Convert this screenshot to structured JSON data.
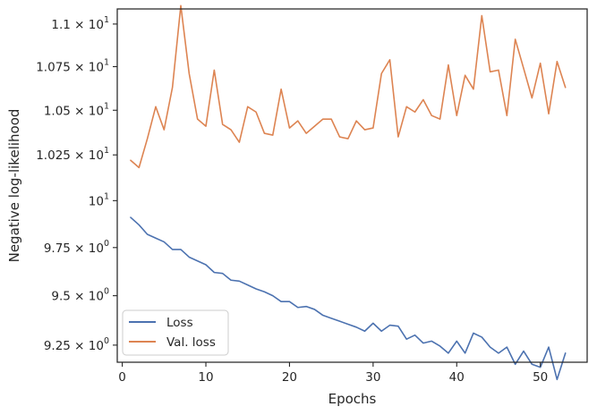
{
  "chart_data": {
    "type": "line",
    "xlabel": "Epochs",
    "ylabel": "Negative log-likelihood",
    "yscale": "log",
    "xlim": [
      -0.6,
      55.6
    ],
    "ylim": [
      9.165,
      11.09
    ],
    "grid": false,
    "legend_position": "lower-left",
    "x_ticks": [
      {
        "value": 0,
        "label": "0"
      },
      {
        "value": 10,
        "label": "10"
      },
      {
        "value": 20,
        "label": "20"
      },
      {
        "value": 30,
        "label": "30"
      },
      {
        "value": 40,
        "label": "40"
      },
      {
        "value": 50,
        "label": "50"
      }
    ],
    "y_ticks": [
      {
        "value": 9.25,
        "base": "9.25",
        "times": "×",
        "power": "10",
        "exp": "0"
      },
      {
        "value": 9.5,
        "base": "9.5",
        "times": "×",
        "power": "10",
        "exp": "0"
      },
      {
        "value": 9.75,
        "base": "9.75",
        "times": "×",
        "power": "10",
        "exp": "0"
      },
      {
        "value": 10.0,
        "base": "",
        "times": "",
        "power": "10",
        "exp": "1"
      },
      {
        "value": 10.25,
        "base": "1.025",
        "times": "×",
        "power": "10",
        "exp": "1"
      },
      {
        "value": 10.5,
        "base": "1.05",
        "times": "×",
        "power": "10",
        "exp": "1"
      },
      {
        "value": 10.75,
        "base": "1.075",
        "times": "×",
        "power": "10",
        "exp": "1"
      },
      {
        "value": 11.0,
        "base": "1.1",
        "times": "×",
        "power": "10",
        "exp": "1"
      }
    ],
    "x": [
      1,
      2,
      3,
      4,
      5,
      6,
      7,
      8,
      9,
      10,
      11,
      12,
      13,
      14,
      15,
      16,
      17,
      18,
      19,
      20,
      21,
      22,
      23,
      24,
      25,
      26,
      27,
      28,
      29,
      30,
      31,
      32,
      33,
      34,
      35,
      36,
      37,
      38,
      39,
      40,
      41,
      42,
      43,
      44,
      45,
      46,
      47,
      48,
      49,
      50,
      51,
      52,
      53
    ],
    "series": [
      {
        "name": "Loss",
        "color": "#4c72b0",
        "values": [
          9.91,
          9.87,
          9.82,
          9.8,
          9.78,
          9.74,
          9.74,
          9.7,
          9.68,
          9.66,
          9.62,
          9.615,
          9.58,
          9.575,
          9.555,
          9.535,
          9.52,
          9.5,
          9.47,
          9.47,
          9.44,
          9.445,
          9.43,
          9.4,
          9.385,
          9.37,
          9.355,
          9.34,
          9.32,
          9.36,
          9.32,
          9.35,
          9.345,
          9.28,
          9.3,
          9.26,
          9.27,
          9.245,
          9.21,
          9.27,
          9.21,
          9.31,
          9.29,
          9.24,
          9.21,
          9.24,
          9.155,
          9.22,
          9.155,
          9.14,
          9.24,
          9.08,
          9.21
        ]
      },
      {
        "name": "Val. loss",
        "color": "#dd8452",
        "values": [
          10.22,
          10.18,
          10.34,
          10.52,
          10.39,
          10.63,
          11.11,
          10.71,
          10.45,
          10.41,
          10.73,
          10.42,
          10.39,
          10.32,
          10.52,
          10.49,
          10.37,
          10.36,
          10.62,
          10.4,
          10.44,
          10.37,
          10.41,
          10.45,
          10.45,
          10.35,
          10.34,
          10.44,
          10.39,
          10.4,
          10.71,
          10.79,
          10.35,
          10.52,
          10.49,
          10.56,
          10.47,
          10.45,
          10.76,
          10.47,
          10.7,
          10.62,
          11.05,
          10.72,
          10.73,
          10.47,
          10.91,
          10.74,
          10.57,
          10.77,
          10.48,
          10.78,
          10.63
        ]
      }
    ]
  }
}
